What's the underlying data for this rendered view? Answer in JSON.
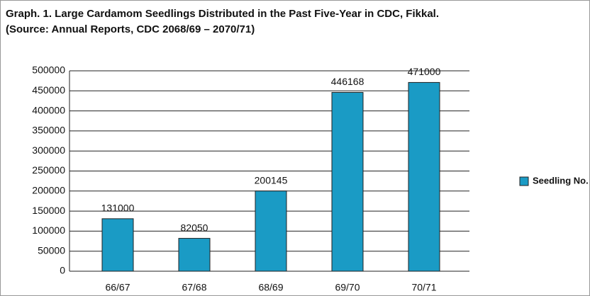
{
  "chart_data": {
    "type": "bar",
    "title": "Graph. 1. Large Cardamom Seedlings Distributed in the Past Five-Year in CDC, Fikkal.",
    "subtitle": "(Source: Annual Reports, CDC 2068/69 – 2070/71)",
    "categories": [
      "66/67",
      "67/68",
      "68/69",
      "69/70",
      "70/71"
    ],
    "series": [
      {
        "name": "Seedling No.",
        "color": "#1a9bc5",
        "values": [
          131000,
          82050,
          200145,
          446168,
          471000
        ]
      }
    ],
    "ylim": [
      0,
      500000
    ],
    "yticks": [
      0,
      50000,
      100000,
      150000,
      200000,
      250000,
      300000,
      350000,
      400000,
      450000,
      500000
    ],
    "grid": true,
    "legend": "right"
  }
}
